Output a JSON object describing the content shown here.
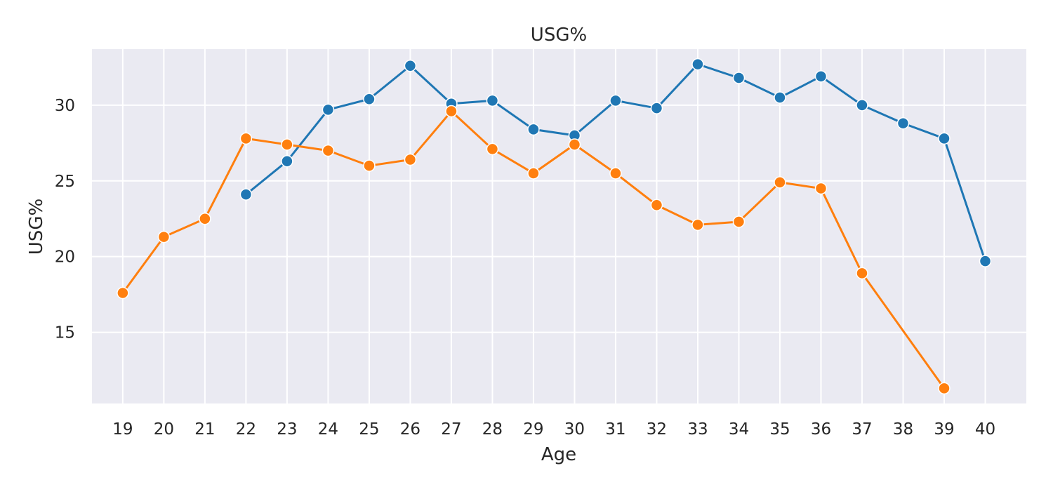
{
  "chart_data": {
    "type": "line",
    "title": "USG%",
    "xlabel": "Age",
    "ylabel": "USG%",
    "x": [
      19,
      20,
      21,
      22,
      23,
      24,
      25,
      26,
      27,
      28,
      29,
      30,
      31,
      32,
      33,
      34,
      35,
      36,
      37,
      38,
      39,
      40
    ],
    "x_tick_labels": [
      "19",
      "20",
      "21",
      "22",
      "23",
      "24",
      "25",
      "26",
      "27",
      "28",
      "29",
      "30",
      "31",
      "32",
      "33",
      "34",
      "35",
      "36",
      "37",
      "38",
      "39",
      "40"
    ],
    "y_ticks": [
      15,
      20,
      25,
      30
    ],
    "y_tick_labels": [
      "15",
      "20",
      "25",
      "30"
    ],
    "xlim": [
      18.25,
      41.0
    ],
    "ylim": [
      10.3,
      33.7
    ],
    "grid": true,
    "legend": false,
    "series": [
      {
        "color": "#1f77b4",
        "points": [
          {
            "x": 22,
            "y": 24.1
          },
          {
            "x": 23,
            "y": 26.3
          },
          {
            "x": 24,
            "y": 29.7
          },
          {
            "x": 25,
            "y": 30.4
          },
          {
            "x": 26,
            "y": 32.6
          },
          {
            "x": 27,
            "y": 30.1
          },
          {
            "x": 28,
            "y": 30.3
          },
          {
            "x": 29,
            "y": 28.4
          },
          {
            "x": 30,
            "y": 28.0
          },
          {
            "x": 31,
            "y": 30.3
          },
          {
            "x": 32,
            "y": 29.8
          },
          {
            "x": 33,
            "y": 32.7
          },
          {
            "x": 34,
            "y": 31.8
          },
          {
            "x": 35,
            "y": 30.5
          },
          {
            "x": 36,
            "y": 31.9
          },
          {
            "x": 37,
            "y": 30.0
          },
          {
            "x": 38,
            "y": 28.8
          },
          {
            "x": 39,
            "y": 27.8
          },
          {
            "x": 40,
            "y": 19.7
          }
        ]
      },
      {
        "color": "#ff7f0e",
        "points": [
          {
            "x": 19,
            "y": 17.6
          },
          {
            "x": 20,
            "y": 21.3
          },
          {
            "x": 21,
            "y": 22.5
          },
          {
            "x": 22,
            "y": 27.8
          },
          {
            "x": 23,
            "y": 27.4
          },
          {
            "x": 24,
            "y": 27.0
          },
          {
            "x": 25,
            "y": 26.0
          },
          {
            "x": 26,
            "y": 26.4
          },
          {
            "x": 27,
            "y": 29.6
          },
          {
            "x": 28,
            "y": 27.1
          },
          {
            "x": 29,
            "y": 25.5
          },
          {
            "x": 30,
            "y": 27.4
          },
          {
            "x": 31,
            "y": 25.5
          },
          {
            "x": 32,
            "y": 23.4
          },
          {
            "x": 33,
            "y": 22.1
          },
          {
            "x": 34,
            "y": 22.3
          },
          {
            "x": 35,
            "y": 24.9
          },
          {
            "x": 36,
            "y": 24.5
          },
          {
            "x": 37,
            "y": 18.9
          },
          {
            "x": 39,
            "y": 11.3
          }
        ]
      }
    ]
  }
}
